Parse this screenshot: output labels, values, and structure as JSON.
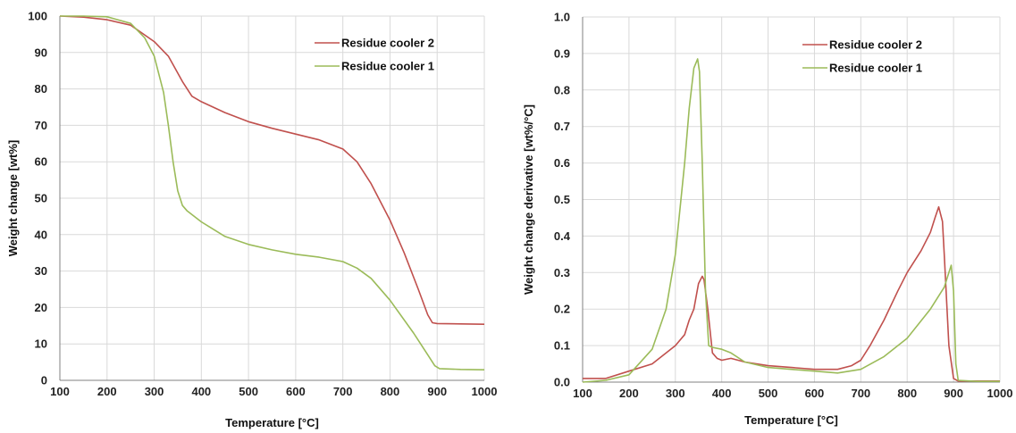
{
  "colors": {
    "cooler2": "#c0504d",
    "cooler1": "#9bbb59"
  },
  "chart_data": [
    {
      "type": "line",
      "xlabel": "Temperature [°C]",
      "ylabel": "Weight change [wt%]",
      "xlim": [
        100,
        1000
      ],
      "ylim": [
        0,
        100
      ],
      "x_ticks": [
        "100",
        "200",
        "300",
        "400",
        "500",
        "600",
        "700",
        "800",
        "900",
        "1000"
      ],
      "y_ticks": [
        "0",
        "10",
        "20",
        "30",
        "40",
        "50",
        "60",
        "70",
        "80",
        "90",
        "100"
      ],
      "grid": true,
      "legend": "top-right",
      "series": [
        {
          "name": "Residue cooler 2",
          "color": "#c0504d",
          "x": [
            100,
            150,
            200,
            250,
            300,
            330,
            360,
            380,
            400,
            450,
            500,
            550,
            600,
            650,
            700,
            730,
            760,
            800,
            830,
            860,
            880,
            890,
            900,
            950,
            1000
          ],
          "y": [
            100,
            99.7,
            99,
            97.5,
            93,
            89,
            82,
            78,
            76.5,
            73.5,
            71,
            69.2,
            67.6,
            66,
            63.5,
            60,
            54,
            44,
            35,
            25,
            18,
            15.8,
            15.6,
            15.5,
            15.4
          ]
        },
        {
          "name": "Residue cooler 1",
          "color": "#9bbb59",
          "x": [
            100,
            150,
            200,
            250,
            280,
            300,
            320,
            330,
            340,
            350,
            360,
            370,
            400,
            450,
            500,
            550,
            600,
            650,
            700,
            730,
            760,
            800,
            850,
            880,
            895,
            905,
            950,
            1000
          ],
          "y": [
            100,
            100,
            99.8,
            98,
            94,
            89,
            79,
            70,
            60,
            52,
            48,
            46.5,
            43.5,
            39.5,
            37.3,
            35.8,
            34.6,
            33.8,
            32.6,
            30.8,
            28,
            22,
            13,
            7,
            4,
            3.2,
            3,
            2.9
          ]
        }
      ]
    },
    {
      "type": "line",
      "xlabel": "Temperature [°C]",
      "ylabel": "Weight change derivative [wt%/°C]",
      "xlim": [
        100,
        1000
      ],
      "ylim": [
        0,
        1.0
      ],
      "x_ticks": [
        "100",
        "200",
        "300",
        "400",
        "500",
        "600",
        "700",
        "800",
        "900",
        "1000"
      ],
      "y_ticks": [
        "0.0",
        "0.1",
        "0.2",
        "0.3",
        "0.4",
        "0.5",
        "0.6",
        "0.7",
        "0.8",
        "0.9",
        "1.0"
      ],
      "grid": true,
      "legend": "top-right",
      "series": [
        {
          "name": "Residue cooler 2",
          "color": "#c0504d",
          "x": [
            100,
            150,
            200,
            250,
            300,
            320,
            330,
            340,
            350,
            358,
            362,
            370,
            380,
            390,
            400,
            420,
            450,
            500,
            550,
            600,
            650,
            680,
            700,
            720,
            750,
            780,
            800,
            830,
            850,
            860,
            868,
            872,
            876,
            880,
            890,
            900,
            910,
            1000
          ],
          "y": [
            0.01,
            0.01,
            0.03,
            0.05,
            0.1,
            0.13,
            0.17,
            0.2,
            0.27,
            0.29,
            0.28,
            0.2,
            0.08,
            0.065,
            0.06,
            0.065,
            0.055,
            0.045,
            0.04,
            0.035,
            0.035,
            0.045,
            0.06,
            0.1,
            0.17,
            0.25,
            0.3,
            0.36,
            0.41,
            0.45,
            0.48,
            0.46,
            0.44,
            0.35,
            0.1,
            0.01,
            0.003,
            0.003
          ]
        },
        {
          "name": "Residue cooler 1",
          "color": "#9bbb59",
          "x": [
            100,
            150,
            200,
            250,
            280,
            300,
            320,
            330,
            340,
            348,
            352,
            358,
            365,
            372,
            380,
            400,
            420,
            450,
            500,
            550,
            600,
            650,
            700,
            750,
            800,
            850,
            880,
            890,
            895,
            900,
            905,
            910,
            950,
            1000
          ],
          "y": [
            0.0,
            0.005,
            0.02,
            0.09,
            0.2,
            0.35,
            0.6,
            0.75,
            0.86,
            0.885,
            0.85,
            0.6,
            0.25,
            0.1,
            0.095,
            0.09,
            0.08,
            0.055,
            0.04,
            0.035,
            0.03,
            0.025,
            0.035,
            0.07,
            0.12,
            0.2,
            0.26,
            0.3,
            0.32,
            0.25,
            0.05,
            0.005,
            0.002,
            0.002
          ]
        }
      ]
    }
  ]
}
